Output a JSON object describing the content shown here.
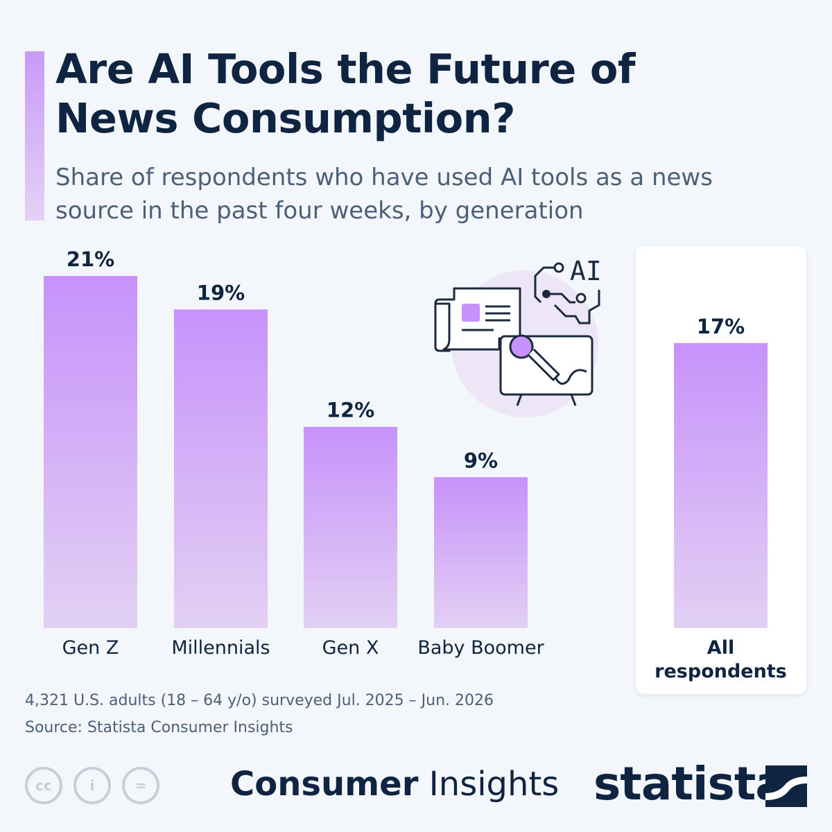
{
  "header": {
    "title": "Are AI Tools the Future of News Consumption?",
    "subtitle": "Share of respondents who have used AI tools as a news source in the past four weeks, by generation"
  },
  "chart_data": {
    "type": "bar",
    "title": "Are AI Tools the Future of News Consumption?",
    "subtitle": "Share of respondents who have used AI tools as a news source in the past four weeks, by generation",
    "categories": [
      "Gen Z",
      "Millennials",
      "Gen X",
      "Baby Boomer"
    ],
    "values": [
      21,
      19,
      12,
      9
    ],
    "value_labels": [
      "21%",
      "19%",
      "12%",
      "9%"
    ],
    "highlight": {
      "category": "All respondents",
      "value": 17,
      "value_label": "17%"
    },
    "ylim": [
      0,
      21
    ],
    "grid": false,
    "colors": {
      "bar_top": "#c792fb",
      "bar_bottom": "#e2d0f3",
      "text": "#0f2440"
    }
  },
  "illustration": {
    "icon": "news-ai-illustration-icon",
    "text": "AI"
  },
  "notes": {
    "survey": "4,321 U.S. adults (18 – 64 y/o) surveyed Jul. 2025 – Jun. 2026",
    "source": "Source: Statista Consumer Insights"
  },
  "footer": {
    "brand_bold": "Consumer",
    "brand_light": "Insights",
    "logo": "statista",
    "license_icons": [
      "cc-icon",
      "by-icon",
      "nd-icon"
    ],
    "license_glyphs": [
      "cc",
      "i",
      "="
    ]
  }
}
